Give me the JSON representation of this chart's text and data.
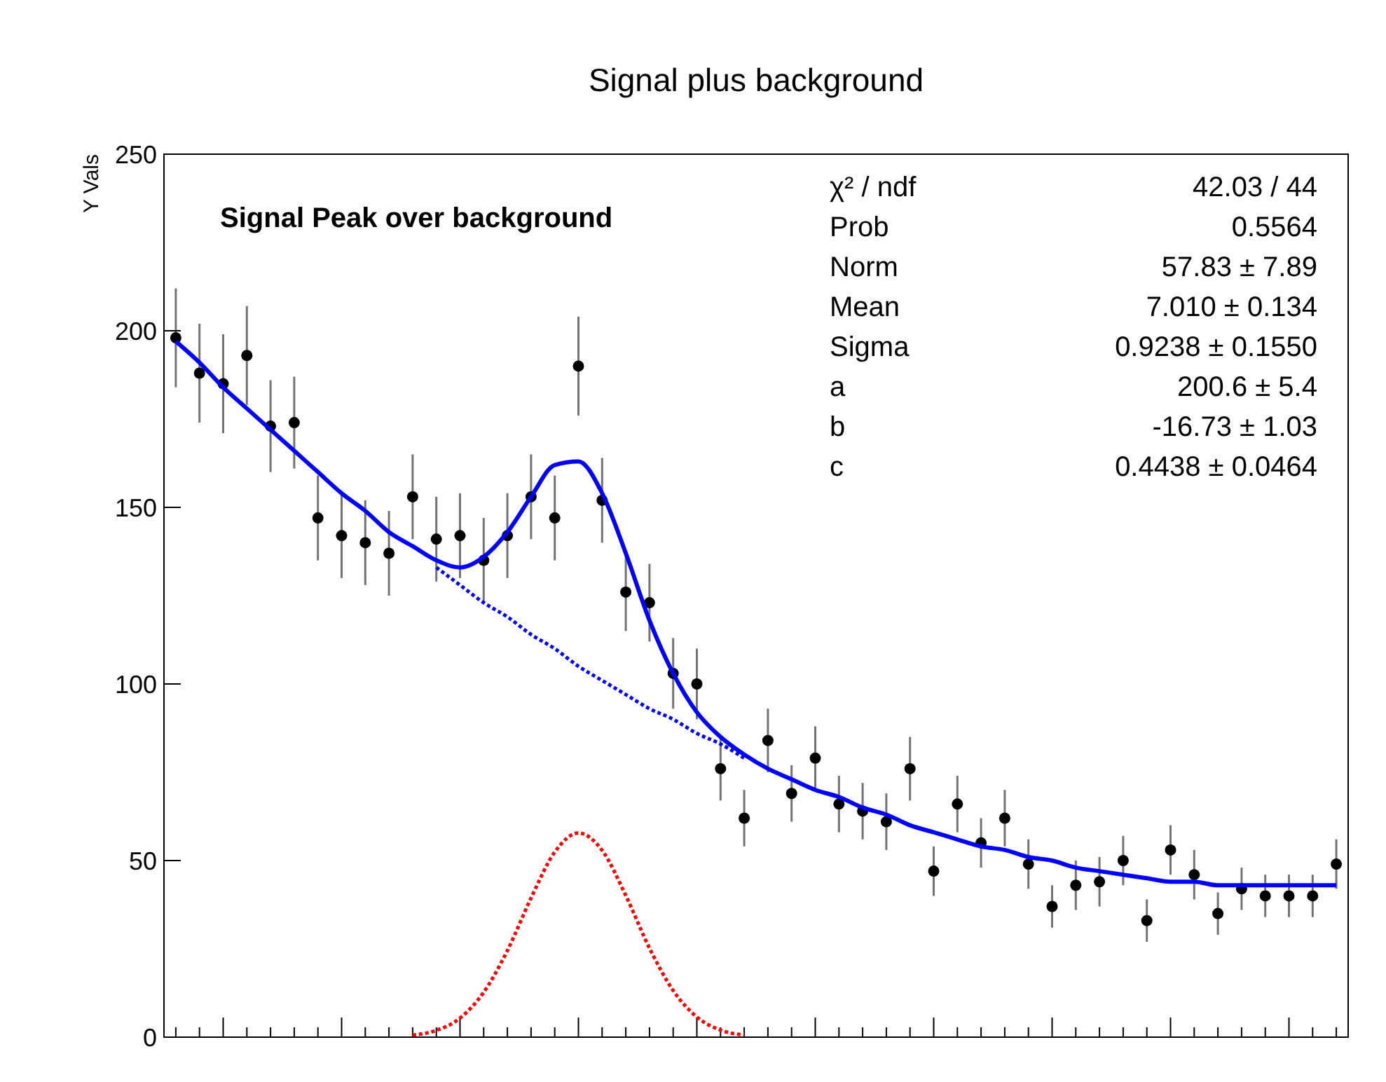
{
  "chart_data": {
    "type": "scatter",
    "title": "Signal plus background",
    "subtitle": "Signal Peak over background",
    "ylabel": "Y Vals",
    "categories": [
      null,
      null,
      null,
      null,
      null,
      null,
      null,
      null,
      null,
      null,
      null,
      null,
      null,
      null,
      null,
      null,
      null,
      null,
      null,
      null,
      null,
      null,
      null,
      null,
      null,
      null,
      null,
      null,
      null,
      null,
      null,
      null,
      null,
      null,
      null,
      null,
      null,
      null,
      null,
      null,
      null,
      null,
      null,
      null,
      null,
      null,
      null,
      null,
      null,
      null
    ],
    "series": [
      {
        "color": "#000000",
        "marker": "circle",
        "values": [
          198,
          188,
          185,
          193,
          173,
          174,
          147,
          142,
          140,
          137,
          153,
          141,
          142,
          135,
          142,
          153,
          147,
          190,
          152,
          126,
          123,
          103,
          100,
          76,
          62,
          84,
          69,
          79,
          66,
          64,
          61,
          76,
          47,
          66,
          55,
          62,
          49,
          37,
          43,
          44,
          50,
          33,
          53,
          46,
          35,
          42,
          40,
          40,
          40,
          49
        ],
        "errors": [
          14,
          14,
          14,
          14,
          13,
          13,
          12,
          12,
          12,
          12,
          12,
          12,
          12,
          12,
          12,
          12,
          12,
          14,
          12,
          11,
          11,
          10,
          10,
          9,
          8,
          9,
          8,
          9,
          8,
          8,
          8,
          9,
          7,
          8,
          7,
          8,
          7,
          6,
          7,
          7,
          7,
          6,
          7,
          7,
          6,
          6,
          6,
          6,
          6,
          7
        ]
      },
      {
        "type": "line",
        "color": "#0000ff",
        "line_style": "solid",
        "values": [
          197,
          191,
          184,
          178,
          172,
          166,
          160,
          154,
          149,
          143,
          139,
          135,
          133,
          136,
          143,
          153,
          162,
          163,
          154,
          137,
          118,
          103,
          92,
          85,
          80,
          76,
          73,
          70,
          68,
          65,
          63,
          60,
          58,
          56,
          54,
          53,
          51,
          50,
          48,
          47,
          46,
          45,
          44,
          44,
          43,
          43,
          43,
          43,
          43,
          43
        ]
      },
      {
        "type": "line",
        "color": "#0000ff",
        "line_style": "dotted",
        "values": [
          null,
          null,
          null,
          null,
          null,
          null,
          null,
          null,
          null,
          null,
          null,
          133,
          128,
          123,
          119,
          114,
          110,
          105,
          101,
          97,
          93,
          90,
          86,
          83,
          79,
          null,
          null,
          null,
          null,
          null,
          null,
          null,
          null,
          null,
          null,
          null,
          null,
          null,
          null,
          null,
          null,
          null,
          null,
          null,
          null,
          null,
          null,
          null,
          null,
          null
        ]
      },
      {
        "type": "line",
        "color": "#ff0000",
        "line_style": "dotted",
        "values": [
          null,
          null,
          null,
          null,
          null,
          null,
          null,
          null,
          null,
          null,
          0.6,
          1.9,
          5.4,
          12.7,
          24.5,
          39.4,
          52.4,
          57.8,
          52.9,
          40.1,
          25.2,
          13.2,
          5.7,
          2.0,
          0.6,
          null,
          null,
          null,
          null,
          null,
          null,
          null,
          null,
          null,
          null,
          null,
          null,
          null,
          null,
          null,
          null,
          null,
          null,
          null,
          null,
          null,
          null,
          null,
          null,
          null
        ]
      }
    ],
    "ylim": [
      0,
      250
    ],
    "yticks": [
      0,
      50,
      100,
      150,
      200,
      250
    ],
    "tick_labels": "y",
    "annotations": [
      "χ² / ndf",
      "42.03 / 44",
      "Prob",
      "0.5564",
      "Norm",
      "57.83 ± 7.89",
      "Mean",
      "7.010 ± 0.134",
      "Sigma",
      "0.9238 ± 0.1550",
      "a",
      "200.6 ± 5.4",
      "b",
      "-16.73 ± 1.03",
      "c",
      "0.4438 ± 0.0464"
    ]
  }
}
